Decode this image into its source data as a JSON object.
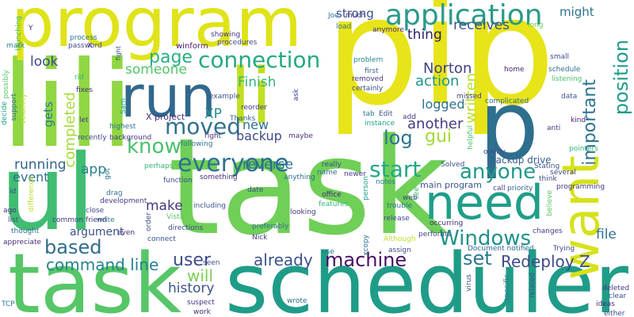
{
  "words": [
    {
      "t": "task",
      "c": "#6fcf57"
    },
    {
      "t": "scheduler",
      "c": "#1f9c88"
    },
    {
      "t": "pip",
      "c": "#e7e419"
    },
    {
      "t": "lili",
      "c": "#90d743"
    },
    {
      "t": "program",
      "c": "#dfe318"
    },
    {
      "t": "ul",
      "c": "#40bd72"
    },
    {
      "t": "task",
      "c": "#56c667"
    },
    {
      "t": "run",
      "c": "#31688e"
    },
    {
      "t": "li",
      "c": "#c2df23"
    },
    {
      "t": "p",
      "c": "#2e6f8e"
    },
    {
      "t": "need",
      "c": "#1f9e89"
    },
    {
      "t": "want",
      "c": "#d5e21a"
    },
    {
      "t": "application",
      "c": "#2a9a8a"
    },
    {
      "t": "connection",
      "c": "#25a982"
    },
    {
      "t": "page",
      "c": "#29af7f"
    },
    {
      "t": "moved",
      "c": "#30718e"
    },
    {
      "t": "know",
      "c": "#4ac16d"
    },
    {
      "t": "everyone",
      "c": "#2d708e"
    },
    {
      "t": "start",
      "c": "#22a884"
    },
    {
      "t": "anyone",
      "c": "#1f9a8a"
    },
    {
      "t": "Windows",
      "c": "#21918c"
    },
    {
      "t": "machine",
      "c": "#471063"
    },
    {
      "t": "set",
      "c": "#2a788e"
    },
    {
      "t": "user",
      "c": "#3e4a89"
    },
    {
      "t": "command line",
      "c": "#26828e"
    },
    {
      "t": "based",
      "c": "#2e6d8e"
    },
    {
      "t": "already",
      "c": "#3b528b"
    },
    {
      "t": "will",
      "c": "#7ad151"
    },
    {
      "t": "history",
      "c": "#3b528b"
    },
    {
      "t": "Redeploy Z",
      "c": "#3e4c8a"
    },
    {
      "t": "position",
      "c": "#1e9b8a"
    },
    {
      "t": "important",
      "c": "#2c728e"
    },
    {
      "t": "written",
      "c": "#b5de2b"
    },
    {
      "t": "gui",
      "c": "#a0da39"
    },
    {
      "t": "log",
      "c": "#2a768e"
    },
    {
      "t": "Norton",
      "c": "#424086"
    },
    {
      "t": "action",
      "c": "#1f958b"
    },
    {
      "t": "receives",
      "c": "#3b528b"
    },
    {
      "t": "thing",
      "c": "#2d1e63"
    },
    {
      "t": "might",
      "c": "#2c738e"
    },
    {
      "t": "strong",
      "c": "#3b518b"
    },
    {
      "t": "look",
      "c": "#3f4788"
    },
    {
      "t": "someone",
      "c": "#52c569"
    },
    {
      "t": "Finish",
      "c": "#32b67a"
    },
    {
      "t": "XP",
      "c": "#21908d"
    },
    {
      "t": "logged",
      "c": "#2c728e"
    },
    {
      "t": "another",
      "c": "#443a83"
    },
    {
      "t": "new",
      "c": "#2c718e"
    },
    {
      "t": "backup",
      "c": "#3e4a89"
    },
    {
      "t": "running",
      "c": "#33638d"
    },
    {
      "t": "event",
      "c": "#2d708e"
    },
    {
      "t": "app",
      "c": "#277f8e"
    },
    {
      "t": "make",
      "c": "#453581"
    },
    {
      "t": "argument",
      "c": "#3a538b"
    },
    {
      "t": "reverse",
      "c": "#2c728e"
    },
    {
      "t": "file",
      "c": "#2e6e8e"
    },
    {
      "t": "completed",
      "c": "#a5db36"
    },
    {
      "t": "gets",
      "c": "#2a788e"
    },
    {
      "t": "backup drive",
      "c": "#365c8d"
    },
    {
      "t": "main program",
      "c": "#39568c"
    },
    {
      "t": "X project",
      "c": "#46327e"
    },
    {
      "t": "winform",
      "c": "#48186a"
    },
    {
      "t": "process",
      "c": "#2c728e"
    },
    {
      "t": "password",
      "c": "#3e4989"
    },
    {
      "t": "launching",
      "c": "#31b57b"
    },
    {
      "t": "mark",
      "c": "#26828e"
    },
    {
      "t": "Y",
      "c": "#482475"
    },
    {
      "t": "X",
      "c": "#481f70"
    },
    {
      "t": "fight",
      "c": "#3b528b"
    },
    {
      "t": "procedures",
      "c": "#3e4989"
    },
    {
      "t": "showing",
      "c": "#46327e"
    },
    {
      "t": "Joe",
      "c": "#287c8e"
    },
    {
      "t": "much",
      "c": "#453781"
    },
    {
      "t": "load",
      "c": "#2e6e8e"
    },
    {
      "t": "anymore",
      "c": "#482878"
    },
    {
      "t": "long",
      "c": "#6ece58"
    },
    {
      "t": "problem",
      "c": "#23898e"
    },
    {
      "t": "first",
      "c": "#355f8d"
    },
    {
      "t": "removed",
      "c": "#453781"
    },
    {
      "t": "certainly",
      "c": "#3e4989"
    },
    {
      "t": "home",
      "c": "#482475"
    },
    {
      "t": "small",
      "c": "#3f4889"
    },
    {
      "t": "schedule",
      "c": "#2c728e"
    },
    {
      "t": "listening",
      "c": "#4ac16d"
    },
    {
      "t": "data",
      "c": "#3b528b"
    },
    {
      "t": "missed",
      "c": "#443983"
    },
    {
      "t": "complicated",
      "c": "#31688e"
    },
    {
      "t": "kind",
      "c": "#482173"
    },
    {
      "t": "anti",
      "c": "#453781"
    },
    {
      "t": "possibly",
      "c": "#58c765"
    },
    {
      "t": "support",
      "c": "#2e6e8e"
    },
    {
      "t": "volatility",
      "c": "#b8de29"
    },
    {
      "t": "decide",
      "c": "#20a486"
    },
    {
      "t": "rid",
      "c": "#35b779"
    },
    {
      "t": "fixes",
      "c": "#472d7b"
    },
    {
      "t": "let",
      "c": "#443b84"
    },
    {
      "t": "highest",
      "c": "#2c728e"
    },
    {
      "t": "Sam",
      "c": "#1fa188"
    },
    {
      "t": "example",
      "c": "#3b528b"
    },
    {
      "t": "reorder",
      "c": "#453882"
    },
    {
      "t": "Thanks",
      "c": "#32648e"
    },
    {
      "t": "ask",
      "c": "#3e4989"
    },
    {
      "t": "right",
      "c": "#46327e"
    },
    {
      "t": "following",
      "c": "#2c728e"
    },
    {
      "t": "maybe",
      "c": "#472d7b"
    },
    {
      "t": "instance",
      "c": "#1fa188"
    },
    {
      "t": "Edit",
      "c": "#3b528b"
    },
    {
      "t": "tab",
      "c": "#2a788e"
    },
    {
      "t": "add",
      "c": "#443983"
    },
    {
      "t": "helpful",
      "c": "#4ac16d"
    },
    {
      "t": "overly",
      "c": "#3e4989"
    },
    {
      "t": "Stating",
      "c": "#3b528b"
    },
    {
      "t": "several",
      "c": "#3f4788"
    },
    {
      "t": "pointers",
      "c": "#35b779"
    },
    {
      "t": "think",
      "c": "#3e4989"
    },
    {
      "t": "believe",
      "c": "#58c765"
    },
    {
      "t": "programming",
      "c": "#453882"
    },
    {
      "t": "recently",
      "c": "#3e4989"
    },
    {
      "t": "background",
      "c": "#453781"
    },
    {
      "t": "got",
      "c": "#2c728e"
    },
    {
      "t": "perhaps",
      "c": "#31b57b"
    },
    {
      "t": "function",
      "c": "#3e4989"
    },
    {
      "t": "something",
      "c": "#472d7b"
    },
    {
      "t": "really",
      "c": "#3e4c8a"
    },
    {
      "t": "name",
      "c": "#2e6e8e"
    },
    {
      "t": "newer",
      "c": "#443983"
    },
    {
      "t": "Solved",
      "c": "#3b528b"
    },
    {
      "t": "difference",
      "c": "#b8de29"
    },
    {
      "t": "id",
      "c": "#3e4989"
    },
    {
      "t": "drag",
      "c": "#2a788e"
    },
    {
      "t": "development",
      "c": "#453781"
    },
    {
      "t": "date",
      "c": "#3b528b"
    },
    {
      "t": "anything",
      "c": "#2e6e8e"
    },
    {
      "t": "office",
      "c": "#472d7b"
    },
    {
      "t": "notes",
      "c": "#2a788e"
    },
    {
      "t": "person",
      "c": "#1fa188"
    },
    {
      "t": "see",
      "c": "#35b779"
    },
    {
      "t": "web",
      "c": "#3e4989"
    },
    {
      "t": "call",
      "c": "#443983"
    },
    {
      "t": "priority",
      "c": "#31688e"
    },
    {
      "t": "ago",
      "c": "#472d7b"
    },
    {
      "t": "close",
      "c": "#3e4989"
    },
    {
      "t": "Vista",
      "c": "#58c765"
    },
    {
      "t": "including",
      "c": "#3b528b"
    },
    {
      "t": "features",
      "c": "#32b67a"
    },
    {
      "t": "trouble",
      "c": "#2c728e"
    },
    {
      "t": "looking",
      "c": "#46327e"
    },
    {
      "t": "release",
      "c": "#3e4989"
    },
    {
      "t": "list",
      "c": "#3e4989"
    },
    {
      "t": "write",
      "c": "#2a788e"
    },
    {
      "t": "order",
      "c": "#3b528b"
    },
    {
      "t": "common friend",
      "c": "#453781"
    },
    {
      "t": "thought",
      "c": "#2c728e"
    },
    {
      "t": "directions",
      "c": "#3e4989"
    },
    {
      "t": "even",
      "c": "#472d7b"
    },
    {
      "t": "connect",
      "c": "#3b528b"
    },
    {
      "t": "preferably",
      "c": "#2e6e8e"
    },
    {
      "t": "Nick",
      "c": "#453882"
    },
    {
      "t": "performs",
      "c": "#3e4989"
    },
    {
      "t": "occurring",
      "c": "#472d7b"
    },
    {
      "t": "Although",
      "c": "#b8de29"
    },
    {
      "t": "Document notified",
      "c": "#31688e"
    },
    {
      "t": "Trying",
      "c": "#3e4989"
    },
    {
      "t": "changes",
      "c": "#443983"
    },
    {
      "t": "appreciate",
      "c": "#472d7b"
    },
    {
      "t": "use",
      "c": "#2a788e"
    },
    {
      "t": "xcopy",
      "c": "#2c728e"
    },
    {
      "t": "assign",
      "c": "#3e4989"
    },
    {
      "t": "seen",
      "c": "#3b528b"
    },
    {
      "t": "suspect",
      "c": "#453781"
    },
    {
      "t": "work",
      "c": "#472d7b"
    },
    {
      "t": "wrote",
      "c": "#2e6e8e"
    },
    {
      "t": "virus",
      "c": "#3e4989"
    },
    {
      "t": "specific",
      "c": "#2a788e"
    },
    {
      "t": "related",
      "c": "#3b528b"
    },
    {
      "t": "deleted",
      "c": "#453882"
    },
    {
      "t": "clear",
      "c": "#3e4989"
    },
    {
      "t": "ideas",
      "c": "#472d7b"
    },
    {
      "t": "either",
      "c": "#3e4989"
    },
    {
      "t": "TCP",
      "c": "#2a788e"
    },
    {
      "t": "tab",
      "c": "#2a788e"
    },
    {
      "t": "task",
      "c": "#1fa188"
    }
  ]
}
